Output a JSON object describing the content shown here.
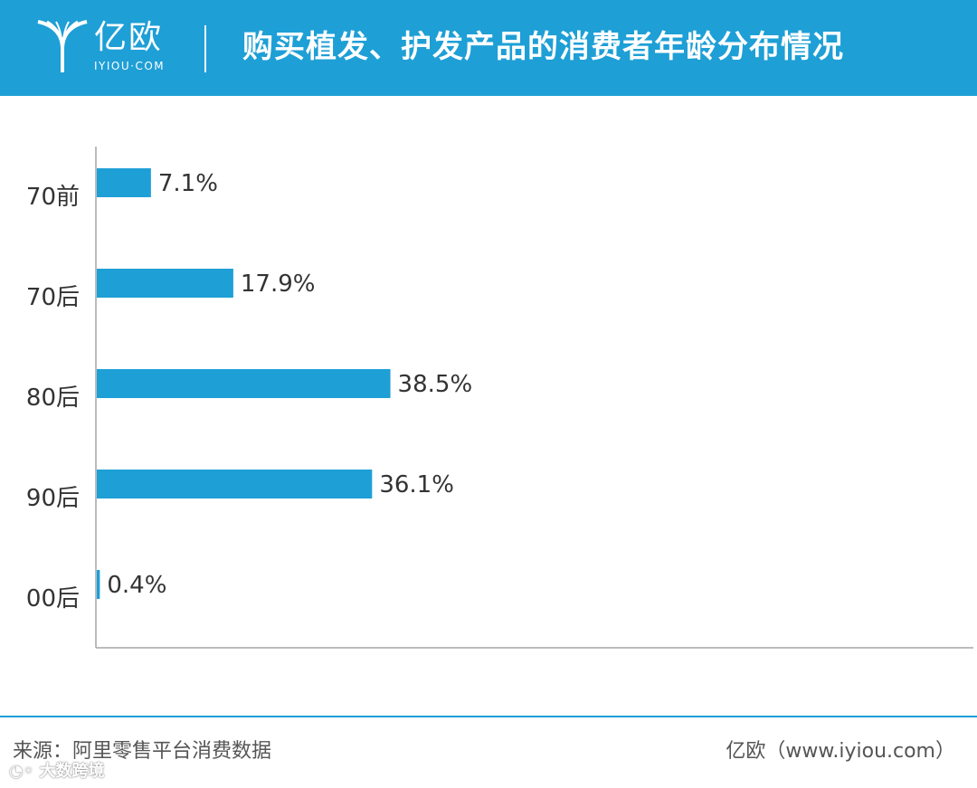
{
  "header": {
    "logo_text": "亿欧",
    "logo_subtext": "IYIOU·COM",
    "title": "购买植发、护发产品的消费者年龄分布情况"
  },
  "chart_data": {
    "type": "bar",
    "orientation": "horizontal",
    "title": "购买植发、护发产品的消费者年龄分布情况",
    "categories": [
      "70前",
      "70后",
      "80后",
      "90后",
      "00后"
    ],
    "values": [
      7.1,
      17.9,
      38.5,
      36.1,
      0.4
    ],
    "value_labels": [
      "7.1%",
      "17.9%",
      "38.5%",
      "36.1%",
      "0.4%"
    ],
    "unit": "%",
    "xlim": [
      0,
      40
    ],
    "grid": false,
    "bar_color": "#1e9fd6",
    "axis_color": "#a6a6a6"
  },
  "footer": {
    "source": "来源：阿里零售平台消费数据",
    "credit": "亿欧（www.iyiou.com）",
    "watermark": "大数跨境"
  },
  "colors": {
    "brand": "#1e9fd6",
    "text": "#333333"
  },
  "icons": {
    "logo": "yiou-logo-icon",
    "watermark": "watermark-logo-icon"
  }
}
